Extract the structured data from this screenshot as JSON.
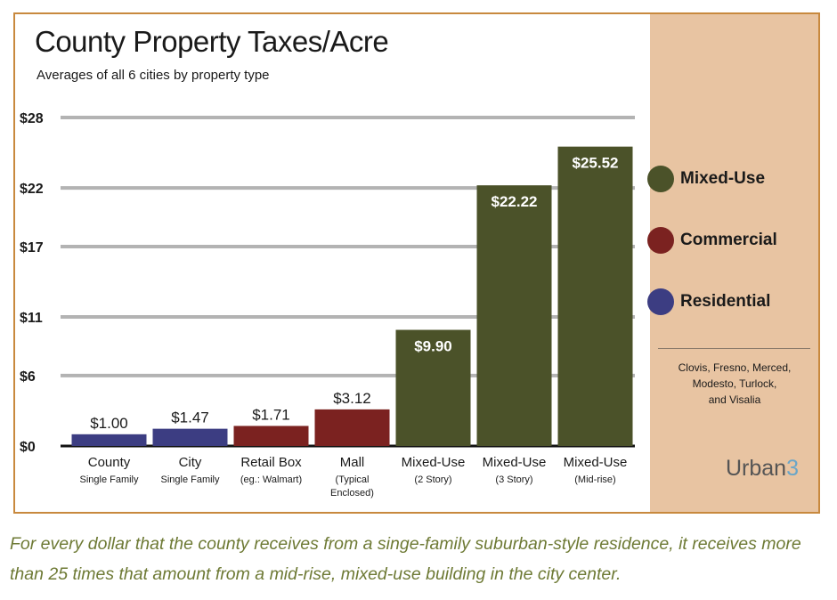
{
  "colors": {
    "mixed_use": "#4b5229",
    "commercial": "#7b2220",
    "residential": "#3c3d82",
    "panel": "#e8c4a2",
    "border": "#c8893e",
    "caption": "#6e7a35"
  },
  "chart_data": {
    "type": "bar",
    "title": "County Property Taxes/Acre",
    "subtitle": "Averages of all 6 cities by property type",
    "xlabel": "",
    "ylabel": "",
    "ylim": [
      0,
      28
    ],
    "yticks": [
      0,
      6,
      11,
      17,
      22,
      28
    ],
    "ytick_labels": [
      "$0",
      "$6",
      "$11",
      "$17",
      "$22",
      "$28"
    ],
    "grid": true,
    "legend_position": "right",
    "categories": [
      {
        "label": "County",
        "sublabel": [
          "Single Family"
        ]
      },
      {
        "label": "City",
        "sublabel": [
          "Single Family"
        ]
      },
      {
        "label": "Retail Box",
        "sublabel": [
          "(eg.: Walmart)"
        ]
      },
      {
        "label": "Mall",
        "sublabel": [
          "(Typical",
          "Enclosed)"
        ]
      },
      {
        "label": "Mixed-Use",
        "sublabel": [
          "(2 Story)"
        ]
      },
      {
        "label": "Mixed-Use",
        "sublabel": [
          "(3 Story)"
        ]
      },
      {
        "label": "Mixed-Use",
        "sublabel": [
          "(Mid-rise)"
        ]
      }
    ],
    "values": [
      1.0,
      1.47,
      1.71,
      3.12,
      9.9,
      22.22,
      25.52
    ],
    "value_labels": [
      "$1.00",
      "$1.47",
      "$1.71",
      "$3.12",
      "$9.90",
      "$22.22",
      "$25.52"
    ],
    "bar_types": [
      "residential",
      "residential",
      "commercial",
      "commercial",
      "mixed_use",
      "mixed_use",
      "mixed_use"
    ]
  },
  "legend": {
    "items": [
      {
        "key": "mixed_use",
        "label": "Mixed-Use"
      },
      {
        "key": "commercial",
        "label": "Commercial"
      },
      {
        "key": "residential",
        "label": "Residential"
      }
    ],
    "cities_lines": [
      "Clovis, Fresno, Merced,",
      "Modesto, Turlock,",
      "and Visalia"
    ]
  },
  "brand": {
    "text": "Urban",
    "mark": "3"
  },
  "caption": "For every dollar that the county receives from a singe-family suburban-style residence, it receives more than 25 times that amount from a mid-rise, mixed-use building in the city center."
}
